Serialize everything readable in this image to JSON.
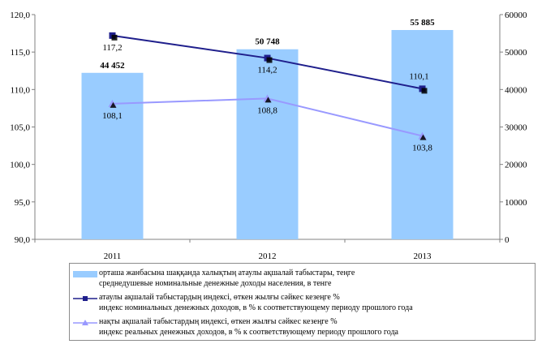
{
  "chart_data": {
    "type": "bar",
    "categories": [
      "2011",
      "2012",
      "2013"
    ],
    "bars": {
      "values": [
        44452,
        50748,
        55885
      ],
      "labels": [
        "44 452",
        "50 748",
        "55 885"
      ],
      "axis": "right",
      "color": "#99ccff"
    },
    "series": [
      {
        "type": "line",
        "values": [
          117.2,
          114.2,
          110.1
        ],
        "labels": [
          "117,2",
          "114,2",
          "110,1"
        ],
        "axis": "left",
        "color": "#1f1f8c",
        "marker": "square"
      },
      {
        "type": "line",
        "values": [
          108.1,
          108.8,
          103.8
        ],
        "labels": [
          "108,1",
          "108,8",
          "103,8"
        ],
        "axis": "left",
        "color": "#9999ff",
        "marker": "triangle"
      }
    ],
    "ylim_left": [
      90,
      120
    ],
    "yticks_left": [
      "90,0",
      "95,0",
      "100,0",
      "105,0",
      "110,0",
      "115,0",
      "120,0"
    ],
    "ylim_right": [
      0,
      60000
    ],
    "yticks_right": [
      "0",
      "10000",
      "20000",
      "30000",
      "40000",
      "50000",
      "60000"
    ],
    "grid": false,
    "legend_position": "bottom"
  },
  "legend": {
    "items": [
      {
        "line1": "орташа жанбасына шаққанда халықтың атаулы ақшалай табыстары, теңге",
        "line2": "среднедушевые номинальные денежные доходы населения, в тенге"
      },
      {
        "line1": "атаулы ақшалай табыстардың индексі, өткен жылғы сәйкес кезеңге %",
        "line2": "индекс номинальных денежных доходов, в % к соответствующему периоду прошлого года"
      },
      {
        "line1": "нақты ақшалай табыстардың индексі, өткен жылғы сәйкес кезеңге %",
        "line2": "индекс реальных денежных доходов, в % к соответствующему периоду прошлого года"
      }
    ]
  }
}
